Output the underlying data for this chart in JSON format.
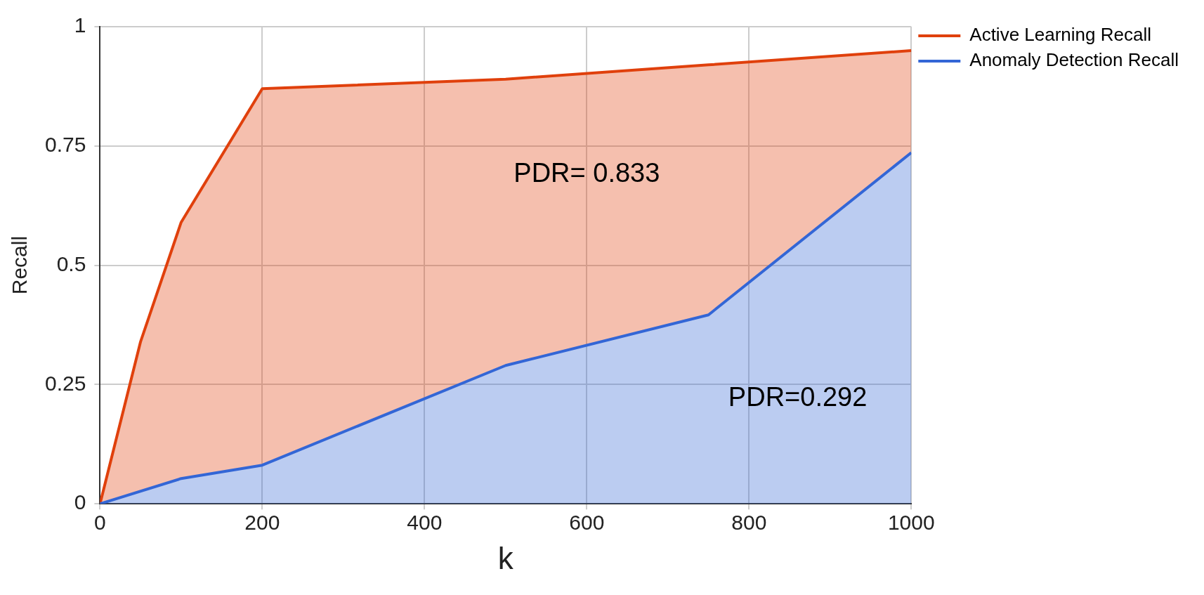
{
  "chart_data": {
    "type": "area",
    "xlabel": "k",
    "ylabel": "Recall",
    "series": [
      {
        "name": "Active Learning Recall",
        "color": "#e0400c",
        "x": [
          0,
          50,
          100,
          200,
          500,
          750,
          1000
        ],
        "values": [
          0,
          0.34,
          0.59,
          0.87,
          0.89,
          0.92,
          0.95
        ]
      },
      {
        "name": "Anomaly Detection Recall",
        "color": "#3366d6",
        "x": [
          0,
          100,
          200,
          500,
          750,
          1000
        ],
        "values": [
          0,
          0.053,
          0.081,
          0.29,
          0.396,
          0.736
        ]
      }
    ],
    "xlim": [
      0,
      1000
    ],
    "xticks": [
      0,
      200,
      400,
      600,
      800,
      1000
    ],
    "ylim": [
      0,
      1
    ],
    "yticks": [
      0,
      0.25,
      0.5,
      0.75,
      1
    ],
    "grid": true,
    "legend": "right",
    "annotations": [
      "PDR= 0.833",
      "PDR=0.292"
    ]
  }
}
